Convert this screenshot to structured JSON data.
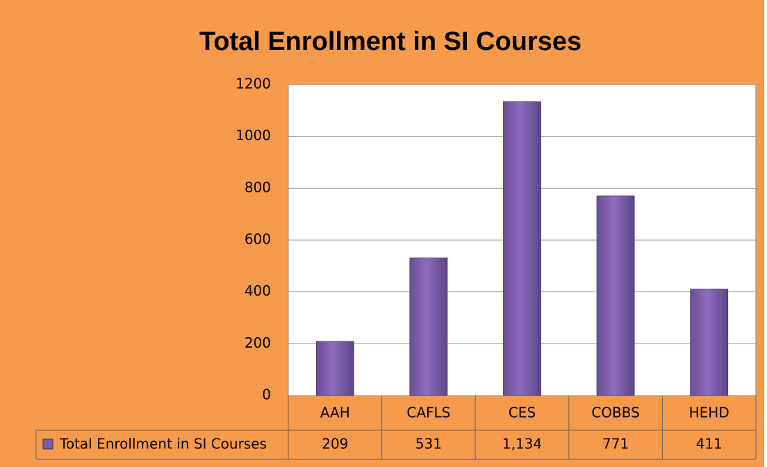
{
  "chart_data": {
    "type": "bar",
    "title": "Total Enrollment in SI Courses",
    "categories": [
      "AAH",
      "CAFLS",
      "CES",
      "COBBS",
      "HEHD"
    ],
    "series": [
      {
        "name": "Total Enrollment in SI Courses",
        "color": "#7b5ea8",
        "values": [
          209,
          531,
          1134,
          771,
          411
        ],
        "value_labels": [
          "209",
          "531",
          "1,134",
          "771",
          "411"
        ]
      }
    ],
    "ylim": [
      0,
      1200
    ],
    "yticks": [
      0,
      200,
      400,
      600,
      800,
      1000,
      1200
    ],
    "grid": true
  }
}
